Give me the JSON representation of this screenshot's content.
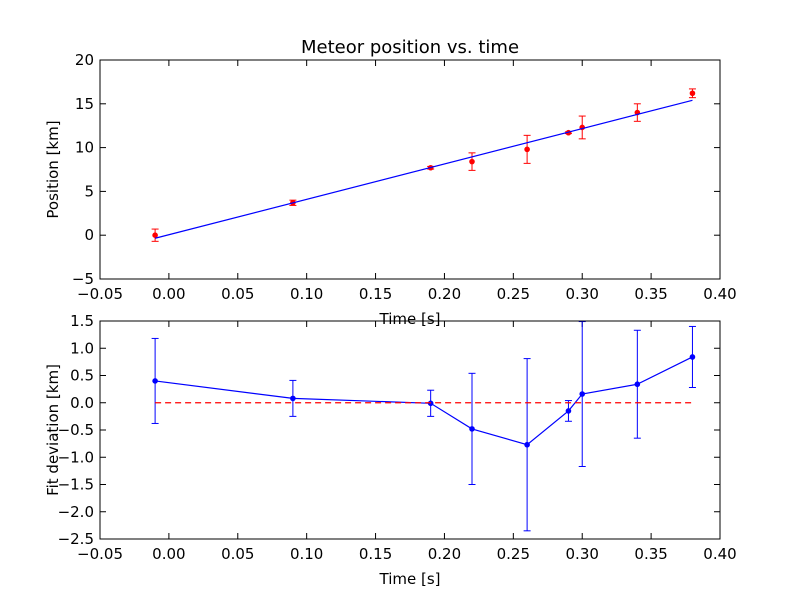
{
  "chart_data": [
    {
      "type": "line",
      "title": "Meteor position vs. time",
      "xlabel": "Time [s]",
      "ylabel": "Position [km]",
      "xlim": [
        -0.05,
        0.4
      ],
      "ylim": [
        -5,
        20
      ],
      "xticks": [
        "−0.05",
        "0.00",
        "0.05",
        "0.10",
        "0.15",
        "0.20",
        "0.25",
        "0.30",
        "0.35",
        "0.40"
      ],
      "yticks": [
        "−5",
        "0",
        "5",
        "10",
        "15",
        "20"
      ],
      "grid": false,
      "series": [
        {
          "kind": "errorbar",
          "color": "#ff0000",
          "marker": "dot",
          "x": [
            -0.01,
            0.09,
            0.19,
            0.22,
            0.26,
            0.29,
            0.3,
            0.34,
            0.38
          ],
          "y": [
            0.0,
            3.7,
            7.7,
            8.4,
            9.8,
            11.7,
            12.3,
            14.0,
            16.2
          ],
          "yerr": [
            0.7,
            0.3,
            0.15,
            1.0,
            1.6,
            0.1,
            1.3,
            1.0,
            0.5
          ]
        },
        {
          "kind": "fit-line",
          "color": "#0000ff",
          "x": [
            -0.01,
            0.38
          ],
          "y": [
            -0.35,
            15.4
          ]
        }
      ]
    },
    {
      "type": "line",
      "title": "",
      "xlabel": "Time [s]",
      "ylabel": "Fit deviation [km]",
      "xlim": [
        -0.05,
        0.4
      ],
      "ylim": [
        -2.5,
        1.5
      ],
      "xticks": [
        "−0.05",
        "0.00",
        "0.05",
        "0.10",
        "0.15",
        "0.20",
        "0.25",
        "0.30",
        "0.35",
        "0.40"
      ],
      "yticks": [
        "−2.5",
        "−2.0",
        "−1.5",
        "−1.0",
        "−0.5",
        "0.0",
        "0.5",
        "1.0",
        "1.5"
      ],
      "grid": false,
      "series": [
        {
          "kind": "errorbar-line",
          "color": "#0000ff",
          "marker": "dot",
          "x": [
            -0.01,
            0.09,
            0.19,
            0.22,
            0.26,
            0.29,
            0.3,
            0.34,
            0.38
          ],
          "y": [
            0.4,
            0.08,
            -0.01,
            -0.48,
            -0.77,
            -0.15,
            0.16,
            0.34,
            0.84
          ],
          "yerr": [
            0.78,
            0.33,
            0.24,
            1.02,
            1.58,
            0.19,
            1.33,
            0.99,
            0.56
          ]
        },
        {
          "kind": "reference-line",
          "style": "dashed",
          "color": "#ff0000",
          "x": [
            -0.01,
            0.38
          ],
          "y": [
            0.0,
            0.0
          ]
        }
      ]
    }
  ]
}
